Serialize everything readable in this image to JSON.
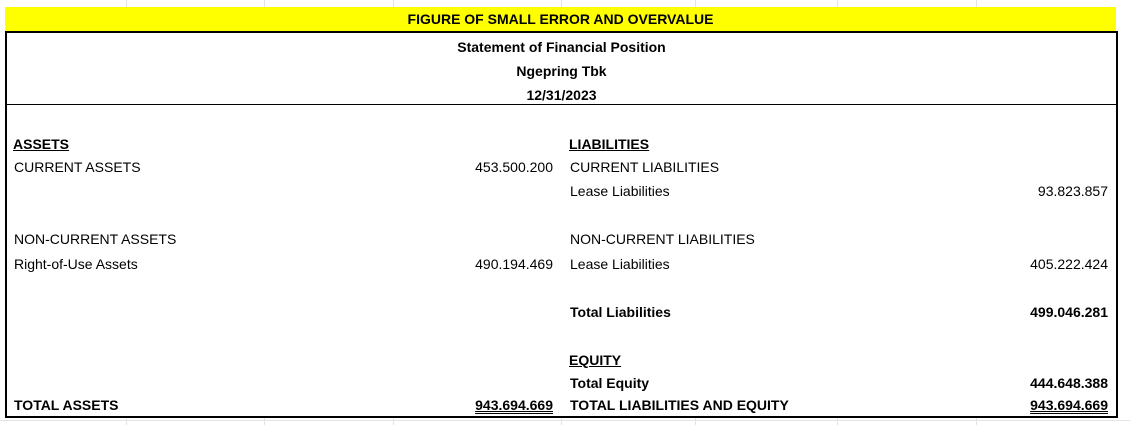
{
  "title": "FIGURE OF SMALL ERROR AND OVERVALUE",
  "header": {
    "statement": "Statement of Financial Position",
    "company": "Ngepring Tbk",
    "date": "12/31/2023"
  },
  "assets": {
    "heading": "ASSETS",
    "current_label": "CURRENT ASSETS",
    "current_value": "453.500.200",
    "noncurrent_label": "NON-CURRENT ASSETS",
    "rou_label": "Right-of-Use Assets",
    "rou_value": "490.194.469",
    "total_label": "TOTAL ASSETS",
    "total_value": "943.694.669"
  },
  "liabilities": {
    "heading": "LIABILITIES",
    "current_label": "CURRENT LIABILITIES",
    "current_lease_label": "Lease Liabilities",
    "current_lease_value": "93.823.857",
    "noncurrent_label": "NON-CURRENT LIABILITIES",
    "noncurrent_lease_label": "Lease Liabilities",
    "noncurrent_lease_value": "405.222.424",
    "total_label": "Total Liabilities",
    "total_value": "499.046.281"
  },
  "equity": {
    "heading": "EQUITY",
    "total_label": "Total Equity",
    "total_value": "444.648.388",
    "grand_total_label": "TOTAL LIABILITIES AND EQUITY",
    "grand_total_value": "943.694.669"
  },
  "colors": {
    "title_highlight": "#ffff00",
    "gridline": "#e3e3e3"
  }
}
